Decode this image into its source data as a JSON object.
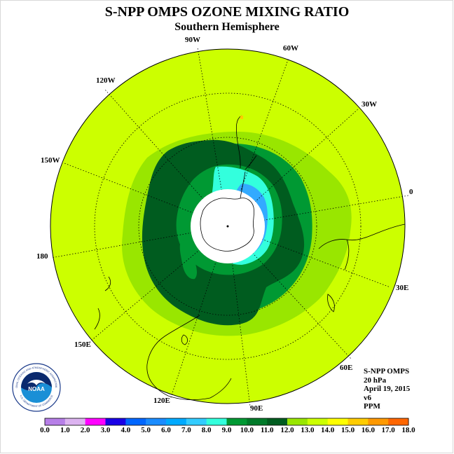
{
  "title": "S-NPP OMPS OZONE MIXING RATIO",
  "subtitle": "Southern Hemisphere",
  "longitude_labels": {
    "w90": "90W",
    "w60": "60W",
    "w30": "30W",
    "lon0": "0",
    "e30": "30E",
    "e60": "60E",
    "e90": "90E",
    "e120": "120E",
    "e150": "150E",
    "lon180": "180",
    "w150": "150W",
    "w120": "120W"
  },
  "info": {
    "instrument": "S-NPP OMPS",
    "level": "20 hPa",
    "date": "April 19, 2015",
    "version": "v6",
    "units": "PPM"
  },
  "logo": {
    "text": "NOAA",
    "ring_text": "NATIONAL OCEANIC AND ATMOSPHERIC ADMINISTRATION",
    "ring_text_bottom": "U.S. DEPARTMENT OF COMMERCE"
  },
  "colorbar": {
    "ticks": [
      "0.0",
      "1.0",
      "2.0",
      "3.0",
      "4.0",
      "5.0",
      "6.0",
      "7.0",
      "8.0",
      "9.0",
      "10.0",
      "11.0",
      "12.0",
      "13.0",
      "14.0",
      "15.0",
      "16.0",
      "17.0",
      "18.0"
    ],
    "colors": [
      "#b77fe8",
      "#dcb3f0",
      "#ff00ff",
      "#1a00e6",
      "#0066ff",
      "#1a8cff",
      "#00aaff",
      "#33ccff",
      "#33ffdd",
      "#009933",
      "#007a29",
      "#005c1f",
      "#99e600",
      "#ccff00",
      "#ffff00",
      "#ffcc00",
      "#ff9900",
      "#ff6600",
      "#ff0000",
      "#7a5230"
    ]
  },
  "colors": {
    "background_field": "#ccff00",
    "band_light_green": "#99e600",
    "band_medium_green": "#009933",
    "band_dark_green": "#005c1f",
    "cyan": "#33ffdd",
    "blue": "#33aaff"
  }
}
